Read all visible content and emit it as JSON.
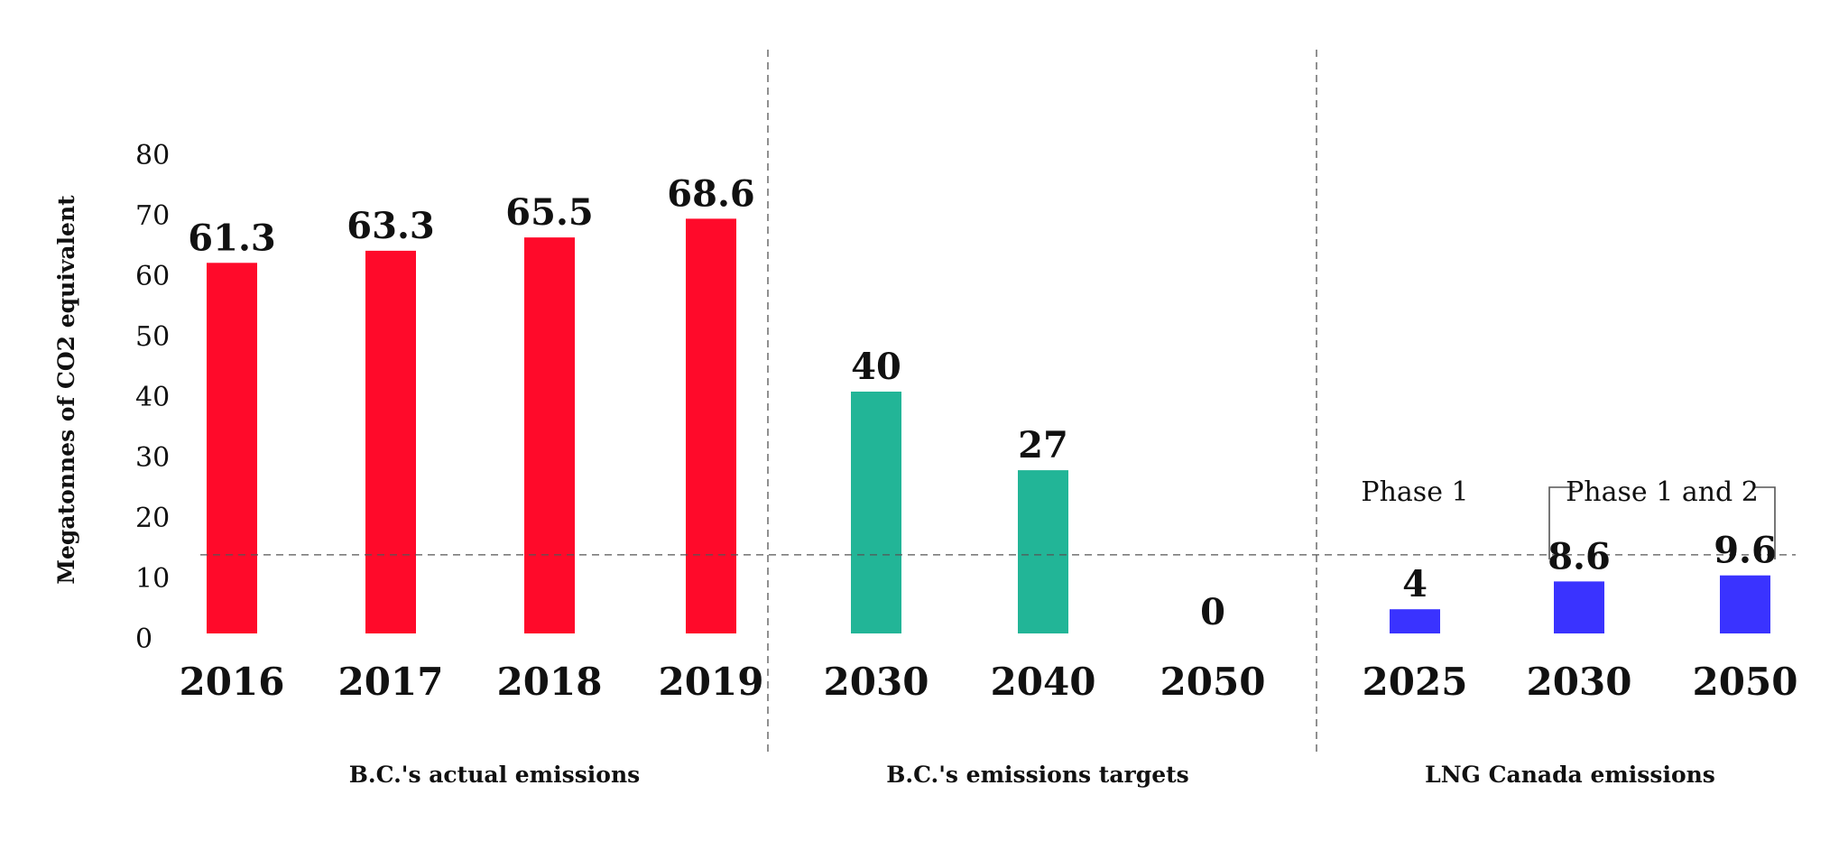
{
  "chart_data": {
    "type": "bar",
    "ylabel": "Megatonnes of CO2 equivalent",
    "ylim": [
      0,
      80
    ],
    "yticks": [
      "0",
      "10",
      "20",
      "30",
      "40",
      "50",
      "60",
      "70",
      "80"
    ],
    "grid": false,
    "reference_line_y": 13,
    "groups": [
      {
        "name": "B.C.'s actual emissions",
        "color": "#ff0a2a",
        "categories": [
          "2016",
          "2017",
          "2018",
          "2019"
        ],
        "values": [
          61.3,
          63.3,
          65.5,
          68.6
        ],
        "value_labels": [
          "61.3",
          "63.3",
          "65.5",
          "68.6"
        ]
      },
      {
        "name": "B.C.'s emissions targets",
        "color": "#22b597",
        "categories": [
          "2030",
          "2040",
          "2050"
        ],
        "values": [
          40,
          27,
          0
        ],
        "value_labels": [
          "40",
          "27",
          "0"
        ]
      },
      {
        "name": "LNG Canada emissions",
        "color": "#3a33ff",
        "categories": [
          "2025",
          "2030",
          "2050"
        ],
        "values": [
          4,
          8.6,
          9.6
        ],
        "value_labels": [
          "4",
          "8.6",
          "9.6"
        ]
      }
    ],
    "annotations": [
      {
        "text": "Phase 1",
        "group": 2,
        "covers": [
          0
        ]
      },
      {
        "text": "Phase 1 and 2",
        "group": 2,
        "covers": [
          1,
          2
        ]
      }
    ]
  }
}
